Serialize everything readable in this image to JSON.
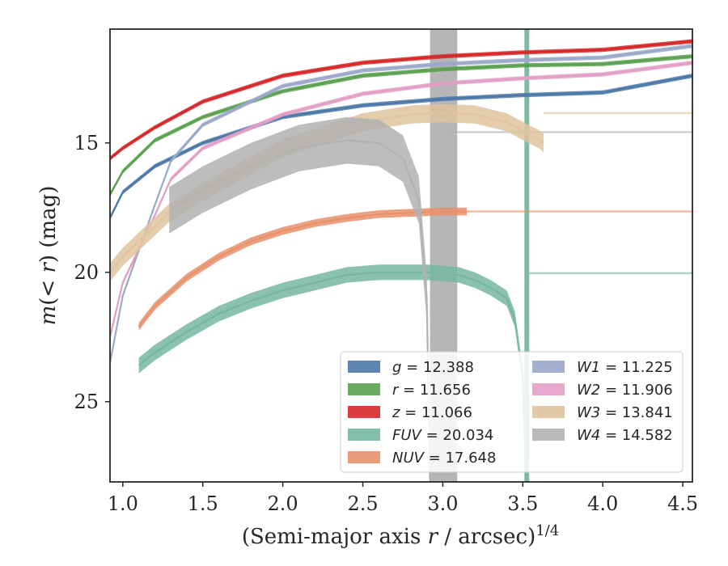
{
  "chart_data": {
    "type": "line",
    "xlabel": "(Semi-major axis r / arcsec)^{1/4}",
    "ylabel": "m(<r) (mag)",
    "xlim": [
      0.92,
      4.56
    ],
    "ylim": [
      28.1,
      10.6
    ],
    "y_inverted": true,
    "xticks": [
      "1.0",
      "1.5",
      "2.0",
      "2.5",
      "3.0",
      "3.5",
      "4.0",
      "4.5"
    ],
    "yticks": [
      "15",
      "20",
      "25"
    ],
    "legend_position": "lower-right",
    "legend_columns": 2,
    "series": [
      {
        "name": "g",
        "value": "12.388",
        "color": "#4c78a8",
        "x": [
          0.92,
          1.0,
          1.2,
          1.5,
          2.0,
          2.5,
          3.0,
          3.5,
          4.0,
          4.56
        ],
        "y": [
          17.9,
          16.9,
          15.9,
          15.0,
          14.0,
          13.55,
          13.3,
          13.15,
          13.05,
          12.4
        ],
        "band": 0.08
      },
      {
        "name": "r",
        "value": "11.656",
        "color": "#59a14f",
        "x": [
          0.92,
          1.0,
          1.2,
          1.5,
          2.0,
          2.5,
          3.0,
          3.5,
          4.0,
          4.56
        ],
        "y": [
          17.0,
          16.1,
          14.9,
          14.0,
          13.0,
          12.4,
          12.15,
          12.0,
          11.95,
          11.65
        ],
        "band": 0.08
      },
      {
        "name": "z",
        "value": "11.066",
        "color": "#d62728",
        "x": [
          0.92,
          1.0,
          1.2,
          1.5,
          2.0,
          2.5,
          3.0,
          3.5,
          4.0,
          4.56
        ],
        "y": [
          15.6,
          15.2,
          14.4,
          13.4,
          12.4,
          11.9,
          11.65,
          11.5,
          11.4,
          11.07
        ],
        "band": 0.08
      },
      {
        "name": "FUV",
        "value": "20.034",
        "color": "#76b7a0",
        "x": [
          1.1,
          1.2,
          1.4,
          1.6,
          1.8,
          2.0,
          2.2,
          2.4,
          2.6,
          2.8,
          2.9,
          3.0,
          3.1,
          3.2,
          3.3,
          3.4,
          3.45,
          3.5,
          3.52
        ],
        "y": [
          23.6,
          23.1,
          22.3,
          21.6,
          21.1,
          20.7,
          20.4,
          20.1,
          20.0,
          20.0,
          20.0,
          20.05,
          20.1,
          20.3,
          20.6,
          21.0,
          21.8,
          24.0,
          28.1
        ],
        "band": 0.3
      },
      {
        "name": "NUV",
        "value": "17.648",
        "color": "#e8916b",
        "x": [
          1.1,
          1.2,
          1.4,
          1.6,
          1.8,
          2.0,
          2.2,
          2.4,
          2.6,
          2.8,
          3.0,
          3.15
        ],
        "y": [
          22.1,
          21.3,
          20.2,
          19.4,
          18.8,
          18.4,
          18.1,
          17.9,
          17.75,
          17.7,
          17.65,
          17.65
        ],
        "band": 0.15
      },
      {
        "name": "W1",
        "value": "11.225",
        "color": "#9aa8c9",
        "x": [
          0.92,
          1.0,
          1.2,
          1.3,
          1.5,
          2.0,
          2.5,
          3.0,
          3.5,
          4.0,
          4.56
        ],
        "y": [
          23.5,
          20.9,
          17.4,
          15.7,
          14.3,
          12.8,
          12.2,
          11.95,
          11.8,
          11.7,
          11.25
        ],
        "band": 0.08
      },
      {
        "name": "W2",
        "value": "11.906",
        "color": "#e39ec6",
        "x": [
          0.92,
          1.0,
          1.2,
          1.3,
          1.5,
          2.0,
          2.5,
          3.0,
          3.5,
          4.0,
          4.56
        ],
        "y": [
          22.5,
          20.4,
          17.8,
          16.4,
          15.2,
          13.9,
          13.1,
          12.7,
          12.5,
          12.35,
          11.9
        ],
        "band": 0.08
      },
      {
        "name": "W3",
        "value": "13.841",
        "color": "#dfc49f",
        "x": [
          0.92,
          1.0,
          1.29,
          1.5,
          2.0,
          2.5,
          2.8,
          3.0,
          3.2,
          3.4,
          3.55,
          3.6,
          3.63
        ],
        "y": [
          20.0,
          19.4,
          17.7,
          16.9,
          15.2,
          14.2,
          13.9,
          13.85,
          13.9,
          14.2,
          14.7,
          14.85,
          15.0
        ],
        "band": 0.35
      },
      {
        "name": "W4",
        "value": "14.582",
        "color": "#b2b2b2",
        "x": [
          1.29,
          1.5,
          1.8,
          2.1,
          2.4,
          2.6,
          2.75,
          2.85,
          2.9,
          2.92
        ],
        "y": [
          17.6,
          16.8,
          15.9,
          15.2,
          14.9,
          15.0,
          15.6,
          17.2,
          21.0,
          28.1
        ],
        "band": 0.9
      }
    ],
    "asymptotes": [
      {
        "name": "W3",
        "y": 13.841,
        "x_start": 3.63
      },
      {
        "name": "W4",
        "y": 14.582,
        "x_start": 3.0
      },
      {
        "name": "NUV",
        "y": 17.648,
        "x_start": 3.15
      },
      {
        "name": "FUV",
        "y": 20.034,
        "x_start": 3.52
      }
    ],
    "vertical_bands": [
      {
        "name": "W4",
        "x_from": 2.92,
        "x_to": 3.09
      },
      {
        "name": "FUV",
        "x_from": 3.51,
        "x_to": 3.54
      }
    ]
  }
}
